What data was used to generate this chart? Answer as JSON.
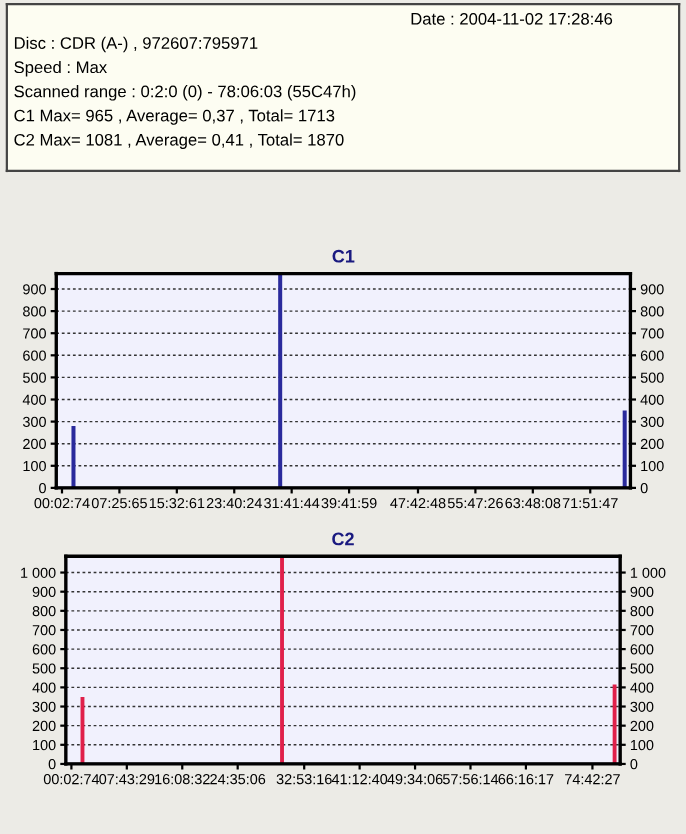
{
  "chart_data": [
    {
      "type": "other",
      "annotations": [
        "Date : 2004-11-02 17:28:46",
        "Disc : CDR (A-) , 972607:795971",
        "Speed : Max",
        "Scanned range : 0:2:0 (0) - 78:06:03 (55C47h)",
        "C1 Max= 965 , Average= 0,37 , Total= 1713",
        "C2 Max= 1081 , Average= 0,41 , Total= 1870"
      ]
    },
    {
      "type": "bar",
      "title": "C1",
      "color": "#2a2a9c",
      "categories": [
        "00:02:74",
        null,
        null,
        null,
        null,
        "07:25:65",
        null,
        null,
        null,
        null,
        "15:32:61",
        null,
        null,
        null,
        null,
        "23:40:24",
        null,
        null,
        null,
        null,
        "31:41:44",
        null,
        null,
        null,
        null,
        "39:41:59",
        null,
        null,
        null,
        null,
        null,
        "47:42:48",
        null,
        null,
        null,
        null,
        "55:47:26",
        null,
        null,
        null,
        null,
        "63:48:08",
        null,
        null,
        null,
        null,
        "71:51:47",
        null,
        null,
        null
      ],
      "values": [
        null,
        280,
        null,
        null,
        null,
        null,
        null,
        null,
        null,
        null,
        null,
        null,
        null,
        null,
        null,
        null,
        null,
        null,
        null,
        965,
        null,
        null,
        null,
        null,
        null,
        null,
        null,
        null,
        null,
        null,
        null,
        null,
        null,
        null,
        null,
        null,
        null,
        null,
        null,
        null,
        null,
        null,
        null,
        null,
        null,
        null,
        null,
        null,
        null,
        350
      ],
      "ylim": [
        0,
        970
      ],
      "yticks": [
        0,
        100,
        200,
        300,
        400,
        500,
        600,
        700,
        800,
        900
      ],
      "y2lim": [
        0,
        970
      ],
      "y2ticks": [
        0,
        100,
        200,
        300,
        400,
        500,
        600,
        700,
        800,
        900
      ],
      "grid": "y"
    },
    {
      "type": "bar",
      "title": "C2",
      "color": "#e0204a",
      "categories": [
        "00:02:74",
        null,
        null,
        null,
        null,
        "07:43:29",
        null,
        null,
        null,
        null,
        "16:08:32",
        null,
        null,
        null,
        null,
        "24:35:06",
        null,
        null,
        null,
        null,
        null,
        "32:53:16",
        null,
        null,
        null,
        null,
        "41:12:40",
        null,
        null,
        null,
        null,
        "49:34:06",
        null,
        null,
        null,
        null,
        "57:56:14",
        null,
        null,
        null,
        null,
        "66:16:17",
        null,
        null,
        null,
        null,
        null,
        "74:42:27",
        null,
        null
      ],
      "values": [
        null,
        350,
        null,
        null,
        null,
        null,
        null,
        null,
        null,
        null,
        null,
        null,
        null,
        null,
        null,
        null,
        null,
        null,
        null,
        1081,
        null,
        null,
        null,
        null,
        null,
        null,
        null,
        null,
        null,
        null,
        null,
        null,
        null,
        null,
        null,
        null,
        null,
        null,
        null,
        null,
        null,
        null,
        null,
        null,
        null,
        null,
        null,
        null,
        null,
        415
      ],
      "ylim": [
        0,
        1085
      ],
      "yticks": [
        0,
        100,
        200,
        300,
        400,
        500,
        600,
        700,
        800,
        900,
        {
          "value": 1000,
          "label": "1 000"
        }
      ],
      "y2lim": [
        0,
        1085
      ],
      "y2ticks": [
        0,
        100,
        200,
        300,
        400,
        500,
        600,
        700,
        800,
        900,
        {
          "value": 1000,
          "label": "1 000"
        }
      ],
      "grid": "y"
    }
  ]
}
